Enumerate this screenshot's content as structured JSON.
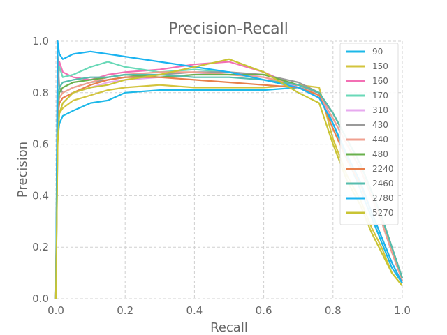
{
  "chart_data": {
    "type": "line",
    "title": "Precision-Recall",
    "xlabel": "Recall",
    "ylabel": "Precision",
    "xlim": [
      0.0,
      1.0
    ],
    "ylim": [
      0.0,
      1.0
    ],
    "xticks": [
      "0.0",
      "0.2",
      "0.4",
      "0.6",
      "0.8",
      "1.0"
    ],
    "yticks": [
      "0.0",
      "0.2",
      "0.4",
      "0.6",
      "0.8",
      "1.0"
    ],
    "grid": true,
    "legend_position": "top-right",
    "series": [
      {
        "name": "90",
        "color": "#1cb8e8",
        "x": [
          0.0,
          0.005,
          0.01,
          0.02,
          0.05,
          0.1,
          0.15,
          0.2,
          0.3,
          0.4,
          0.5,
          0.6,
          0.7,
          0.76,
          0.8,
          0.84,
          0.88,
          0.91,
          0.94,
          0.97,
          1.0
        ],
        "y": [
          0.0,
          0.62,
          0.68,
          0.71,
          0.73,
          0.76,
          0.77,
          0.8,
          0.81,
          0.81,
          0.81,
          0.81,
          0.82,
          0.8,
          0.68,
          0.55,
          0.42,
          0.32,
          0.22,
          0.12,
          0.06
        ]
      },
      {
        "name": "150",
        "color": "#d3c43d",
        "x": [
          0.0,
          0.005,
          0.01,
          0.02,
          0.05,
          0.1,
          0.15,
          0.2,
          0.3,
          0.4,
          0.5,
          0.6,
          0.7,
          0.76,
          0.8,
          0.84,
          0.88,
          0.91,
          0.94,
          0.97,
          1.0
        ],
        "y": [
          0.0,
          0.66,
          0.72,
          0.74,
          0.77,
          0.79,
          0.81,
          0.82,
          0.83,
          0.82,
          0.82,
          0.82,
          0.83,
          0.82,
          0.62,
          0.48,
          0.38,
          0.28,
          0.2,
          0.1,
          0.05
        ]
      },
      {
        "name": "160",
        "color": "#f36fb4",
        "x": [
          0.0,
          0.005,
          0.01,
          0.02,
          0.05,
          0.1,
          0.15,
          0.2,
          0.3,
          0.4,
          0.5,
          0.6,
          0.7,
          0.76,
          0.8,
          0.84,
          0.88,
          0.91,
          0.94,
          0.97,
          1.0
        ],
        "y": [
          0.0,
          0.84,
          0.92,
          0.88,
          0.86,
          0.85,
          0.87,
          0.88,
          0.89,
          0.91,
          0.92,
          0.88,
          0.82,
          0.79,
          0.72,
          0.62,
          0.52,
          0.42,
          0.32,
          0.2,
          0.08
        ]
      },
      {
        "name": "170",
        "color": "#6ad9b8",
        "x": [
          0.0,
          0.005,
          0.01,
          0.02,
          0.05,
          0.1,
          0.15,
          0.2,
          0.3,
          0.4,
          0.5,
          0.6,
          0.7,
          0.76,
          0.8,
          0.84,
          0.88,
          0.91,
          0.94,
          0.97,
          1.0
        ],
        "y": [
          0.0,
          0.82,
          0.9,
          0.86,
          0.87,
          0.9,
          0.92,
          0.9,
          0.88,
          0.89,
          0.88,
          0.85,
          0.82,
          0.78,
          0.7,
          0.6,
          0.5,
          0.4,
          0.3,
          0.18,
          0.08
        ]
      },
      {
        "name": "310",
        "color": "#e7a9ef",
        "x": [
          0.0,
          0.005,
          0.01,
          0.02,
          0.05,
          0.1,
          0.15,
          0.2,
          0.3,
          0.4,
          0.5,
          0.6,
          0.7,
          0.76,
          0.8,
          0.84,
          0.88,
          0.91,
          0.94,
          0.97,
          1.0
        ],
        "y": [
          0.0,
          0.7,
          0.76,
          0.78,
          0.8,
          0.82,
          0.84,
          0.85,
          0.86,
          0.87,
          0.88,
          0.86,
          0.82,
          0.78,
          0.7,
          0.6,
          0.5,
          0.4,
          0.3,
          0.18,
          0.07
        ]
      },
      {
        "name": "430",
        "color": "#9a9a9a",
        "x": [
          0.0,
          0.005,
          0.01,
          0.02,
          0.05,
          0.1,
          0.15,
          0.2,
          0.3,
          0.4,
          0.5,
          0.6,
          0.7,
          0.76,
          0.8,
          0.84,
          0.88,
          0.91,
          0.94,
          0.97,
          1.0
        ],
        "y": [
          0.0,
          0.95,
          0.82,
          0.8,
          0.82,
          0.84,
          0.85,
          0.86,
          0.87,
          0.88,
          0.88,
          0.87,
          0.84,
          0.8,
          0.72,
          0.62,
          0.52,
          0.42,
          0.32,
          0.2,
          0.08
        ]
      },
      {
        "name": "440",
        "color": "#f0a090",
        "x": [
          0.0,
          0.005,
          0.01,
          0.02,
          0.05,
          0.1,
          0.15,
          0.2,
          0.3,
          0.4,
          0.5,
          0.6,
          0.7,
          0.76,
          0.8,
          0.84,
          0.88,
          0.91,
          0.94,
          0.97,
          1.0
        ],
        "y": [
          0.0,
          0.72,
          0.78,
          0.8,
          0.82,
          0.84,
          0.86,
          0.87,
          0.88,
          0.88,
          0.87,
          0.86,
          0.83,
          0.79,
          0.7,
          0.6,
          0.5,
          0.4,
          0.3,
          0.18,
          0.07
        ]
      },
      {
        "name": "480",
        "color": "#6ab04c",
        "x": [
          0.0,
          0.005,
          0.01,
          0.02,
          0.05,
          0.1,
          0.15,
          0.2,
          0.3,
          0.4,
          0.5,
          0.6,
          0.7,
          0.76,
          0.8,
          0.84,
          0.88,
          0.91,
          0.94,
          0.97,
          1.0
        ],
        "y": [
          0.0,
          0.74,
          0.8,
          0.82,
          0.84,
          0.85,
          0.86,
          0.87,
          0.86,
          0.87,
          0.87,
          0.87,
          0.83,
          0.8,
          0.72,
          0.62,
          0.52,
          0.42,
          0.32,
          0.2,
          0.08
        ]
      },
      {
        "name": "2240",
        "color": "#e8804c",
        "x": [
          0.0,
          0.005,
          0.01,
          0.02,
          0.05,
          0.1,
          0.15,
          0.2,
          0.3,
          0.4,
          0.5,
          0.6,
          0.7,
          0.76,
          0.8,
          0.84,
          0.88,
          0.91,
          0.94,
          0.97,
          1.0
        ],
        "y": [
          0.0,
          0.7,
          0.76,
          0.78,
          0.8,
          0.83,
          0.85,
          0.86,
          0.86,
          0.85,
          0.84,
          0.83,
          0.82,
          0.79,
          0.66,
          0.54,
          0.44,
          0.34,
          0.24,
          0.14,
          0.06
        ]
      },
      {
        "name": "2460",
        "color": "#56bdae",
        "x": [
          0.0,
          0.005,
          0.01,
          0.02,
          0.05,
          0.1,
          0.15,
          0.2,
          0.3,
          0.4,
          0.5,
          0.6,
          0.7,
          0.76,
          0.8,
          0.84,
          0.88,
          0.91,
          0.94,
          0.97,
          1.0
        ],
        "y": [
          0.0,
          0.76,
          0.82,
          0.84,
          0.85,
          0.86,
          0.86,
          0.87,
          0.87,
          0.86,
          0.86,
          0.85,
          0.83,
          0.8,
          0.72,
          0.62,
          0.52,
          0.42,
          0.32,
          0.2,
          0.08
        ]
      },
      {
        "name": "2780",
        "color": "#1ab3f0",
        "x": [
          0.0,
          0.005,
          0.01,
          0.02,
          0.05,
          0.1,
          0.15,
          0.2,
          0.3,
          0.4,
          0.5,
          0.6,
          0.7,
          0.76,
          0.8,
          0.84,
          0.88,
          0.91,
          0.94,
          0.97,
          1.0
        ],
        "y": [
          0.0,
          1.0,
          0.95,
          0.93,
          0.95,
          0.96,
          0.95,
          0.94,
          0.92,
          0.9,
          0.88,
          0.85,
          0.82,
          0.78,
          0.68,
          0.56,
          0.45,
          0.34,
          0.24,
          0.14,
          0.06
        ]
      },
      {
        "name": "5270",
        "color": "#c9c434",
        "x": [
          0.0,
          0.005,
          0.01,
          0.02,
          0.05,
          0.1,
          0.15,
          0.2,
          0.3,
          0.4,
          0.5,
          0.6,
          0.7,
          0.76,
          0.8,
          0.84,
          0.88,
          0.91,
          0.94,
          0.97,
          1.0
        ],
        "y": [
          0.0,
          0.6,
          0.72,
          0.76,
          0.8,
          0.82,
          0.83,
          0.85,
          0.87,
          0.9,
          0.93,
          0.88,
          0.8,
          0.76,
          0.6,
          0.46,
          0.36,
          0.26,
          0.18,
          0.1,
          0.05
        ]
      }
    ]
  }
}
